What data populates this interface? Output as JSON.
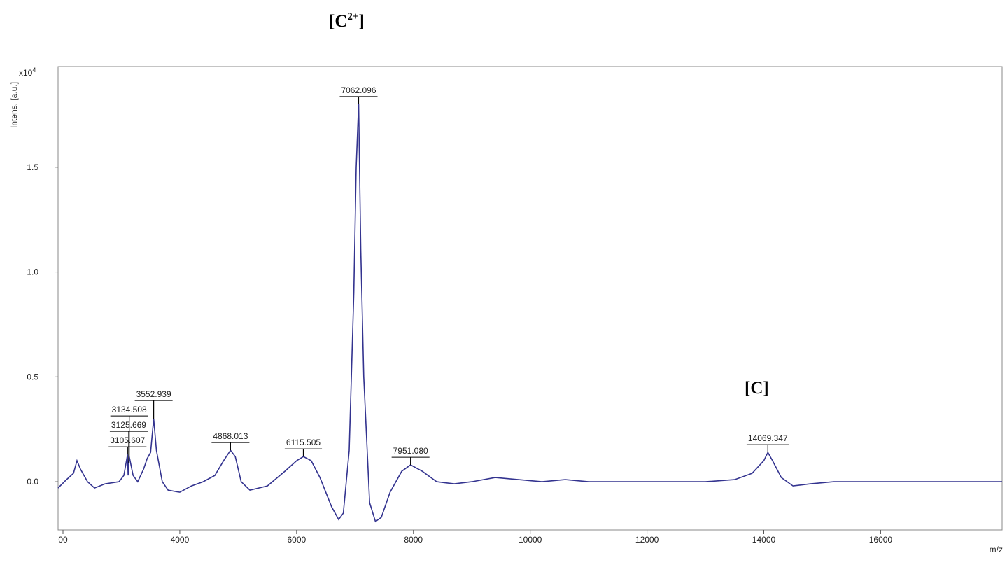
{
  "chart_data": {
    "type": "line",
    "annotations": [
      {
        "base": "[C",
        "sup": "2+",
        "end": "]"
      },
      {
        "base": "[C]"
      }
    ],
    "y_label": "Intens. [a.u.]",
    "y_multiplier": {
      "base": "x10",
      "sup": "4"
    },
    "x_label": "m/z",
    "xlim": [
      1916,
      18080
    ],
    "ylim": [
      -0.23,
      1.98
    ],
    "xticks": [
      {
        "value": 2000,
        "label": "00"
      },
      4000,
      6000,
      8000,
      10000,
      12000,
      14000,
      16000
    ],
    "yticks": [
      {
        "value": 0,
        "label": "0.0"
      },
      0.5,
      {
        "value": 1,
        "label": "1.0"
      },
      1.5
    ],
    "x": [
      1916,
      2060,
      2180,
      2240,
      2300,
      2420,
      2540,
      2720,
      2960,
      3042,
      3105.607,
      3115,
      3125.669,
      3134.508,
      3200,
      3280,
      3380,
      3440,
      3500,
      3552.939,
      3600,
      3700,
      3800,
      4000,
      4200,
      4400,
      4600,
      4750,
      4868.013,
      4950,
      5050,
      5200,
      5500,
      5800,
      6000,
      6115.505,
      6250,
      6400,
      6600,
      6720,
      6800,
      6900,
      6980,
      7020,
      7062.096,
      7080,
      7100,
      7150,
      7250,
      7350,
      7450,
      7600,
      7800,
      7951.08,
      8150,
      8400,
      8700,
      9000,
      9400,
      9800,
      10200,
      10600,
      11000,
      12000,
      13000,
      13500,
      13800,
      14000,
      14069.347,
      14150,
      14300,
      14500,
      14800,
      15200,
      16000,
      17000,
      18080
    ],
    "series": [
      {
        "color": "#33338f",
        "values": [
          -0.03,
          0.01,
          0.04,
          0.1,
          0.06,
          0.0,
          -0.03,
          -0.01,
          0.0,
          0.03,
          0.13,
          0.03,
          0.09,
          0.12,
          0.03,
          0.0,
          0.06,
          0.11,
          0.14,
          0.3,
          0.15,
          0.0,
          -0.04,
          -0.05,
          -0.02,
          0.0,
          0.03,
          0.1,
          0.15,
          0.12,
          0.0,
          -0.04,
          -0.02,
          0.05,
          0.1,
          0.12,
          0.1,
          0.02,
          -0.12,
          -0.18,
          -0.15,
          0.15,
          0.9,
          1.5,
          1.8,
          1.45,
          1.1,
          0.5,
          -0.1,
          -0.19,
          -0.17,
          -0.05,
          0.05,
          0.08,
          0.05,
          0.0,
          -0.01,
          0.0,
          0.02,
          0.01,
          0.0,
          0.01,
          0.0,
          0.0,
          0.0,
          0.01,
          0.04,
          0.1,
          0.14,
          0.1,
          0.02,
          -0.02,
          -0.01,
          0.0,
          0.0,
          0.0,
          0.0
        ]
      }
    ],
    "peaks": {
      "x": [
        3105.607,
        3125.669,
        3134.508,
        3552.939,
        4868.013,
        6115.505,
        7062.096,
        7951.08,
        14069.347
      ],
      "values": [
        0.13,
        0.09,
        0.12,
        0.3,
        0.15,
        0.12,
        1.8,
        0.08,
        0.14
      ],
      "value_labels": [
        "3105.607",
        "3125.669",
        "3134.508",
        "3552.939",
        "4868.013",
        "6115.505",
        "7062.096",
        "7951.080",
        "14069.347"
      ]
    }
  }
}
